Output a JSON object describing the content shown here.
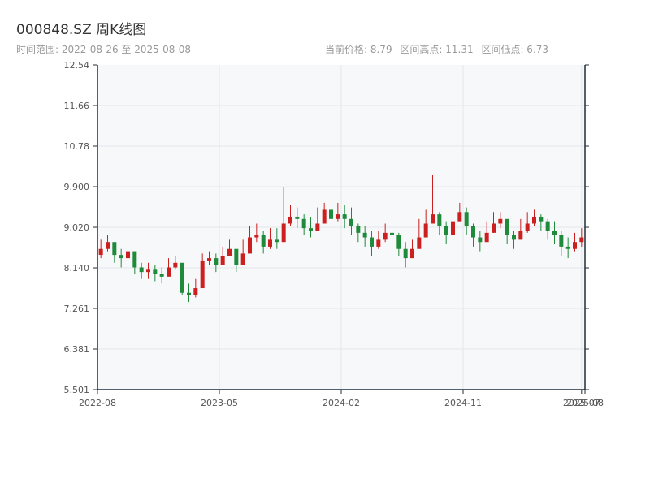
{
  "header": {
    "title": "000848.SZ 周K线图",
    "range_text": "时间范围: 2022-08-26 至 2025-08-08",
    "current_price": "当前价格: 8.79",
    "high_text": "区间高点: 11.31",
    "low_text": "区间低点: 6.73"
  },
  "colors": {
    "up": "#cc1f1f",
    "down": "#1f8a3a",
    "plot_bg": "#f7f8fa",
    "grid": "#e3e6ea",
    "axis": "#1e2d3d"
  },
  "chart_data": {
    "type": "candlestick",
    "title": "000848.SZ 周K线图",
    "ylim": [
      5.501,
      12.54
    ],
    "y_ticks": [
      5.501,
      6.381,
      7.261,
      8.14,
      9.02,
      9.9,
      10.78,
      11.66,
      12.54
    ],
    "y_tick_labels": [
      "5.501",
      "6.381",
      "7.261",
      "8.140",
      "9.020",
      "9.900",
      "10.78",
      "11.66",
      "12.54"
    ],
    "x_ticks": [
      "2022-08",
      "2023-05",
      "2024-02",
      "2024-11",
      "2025-07",
      "2025-08"
    ],
    "x_tick_week_index": [
      0,
      36,
      72,
      108,
      143,
      144
    ],
    "closes": [
      8.55,
      8.7,
      8.42,
      8.35,
      8.5,
      8.15,
      8.05,
      8.1,
      8.0,
      7.95,
      8.15,
      8.25,
      7.6,
      7.55,
      7.7,
      8.3,
      8.35,
      8.2,
      8.4,
      8.55,
      8.2,
      8.45,
      8.8,
      8.85,
      8.6,
      8.75,
      8.7,
      9.1,
      9.25,
      9.2,
      9.0,
      8.95,
      9.1,
      9.4,
      9.2,
      9.3,
      9.2,
      9.05,
      8.9,
      8.8,
      8.6,
      8.75,
      8.9,
      8.85,
      8.55,
      8.35,
      8.55,
      8.8,
      9.1,
      9.3,
      9.05,
      8.85,
      9.15,
      9.35,
      9.05,
      8.8,
      8.7,
      8.9,
      9.1,
      9.2,
      8.85,
      8.75,
      8.95,
      9.1,
      9.25,
      9.15,
      8.95,
      8.85,
      8.6,
      8.55,
      8.7,
      8.8
    ],
    "highs": [
      8.75,
      8.85,
      8.6,
      8.55,
      8.6,
      8.4,
      8.25,
      8.25,
      8.2,
      8.15,
      8.35,
      8.4,
      8.1,
      7.8,
      7.9,
      8.45,
      8.5,
      8.45,
      8.6,
      8.75,
      8.55,
      8.75,
      9.05,
      9.1,
      8.95,
      9.0,
      9.0,
      9.9,
      9.5,
      9.45,
      9.3,
      9.25,
      9.45,
      9.55,
      9.45,
      9.55,
      9.5,
      9.45,
      9.1,
      9.05,
      8.95,
      8.95,
      9.1,
      9.1,
      8.9,
      8.7,
      8.75,
      9.2,
      9.4,
      10.15,
      9.35,
      9.15,
      9.4,
      9.55,
      9.45,
      9.1,
      8.95,
      9.15,
      9.35,
      9.35,
      9.1,
      8.95,
      9.2,
      9.35,
      9.4,
      9.3,
      9.2,
      9.15,
      8.95,
      8.8,
      8.9,
      9.0
    ],
    "lows": [
      8.35,
      8.5,
      8.25,
      8.15,
      8.3,
      8.0,
      7.9,
      7.9,
      7.85,
      7.8,
      8.0,
      8.1,
      7.55,
      7.4,
      7.5,
      8.1,
      8.2,
      8.05,
      8.25,
      8.4,
      8.05,
      8.3,
      8.6,
      8.7,
      8.45,
      8.55,
      8.55,
      8.95,
      9.05,
      9.0,
      8.85,
      8.8,
      8.95,
      9.2,
      9.0,
      9.15,
      9.0,
      8.85,
      8.7,
      8.6,
      8.4,
      8.55,
      8.7,
      8.65,
      8.4,
      8.15,
      8.35,
      8.6,
      8.9,
      9.1,
      8.85,
      8.65,
      8.95,
      9.15,
      8.85,
      8.6,
      8.5,
      8.7,
      8.9,
      9.0,
      8.65,
      8.55,
      8.75,
      8.9,
      9.05,
      8.95,
      8.75,
      8.65,
      8.4,
      8.35,
      8.5,
      8.6
    ]
  }
}
